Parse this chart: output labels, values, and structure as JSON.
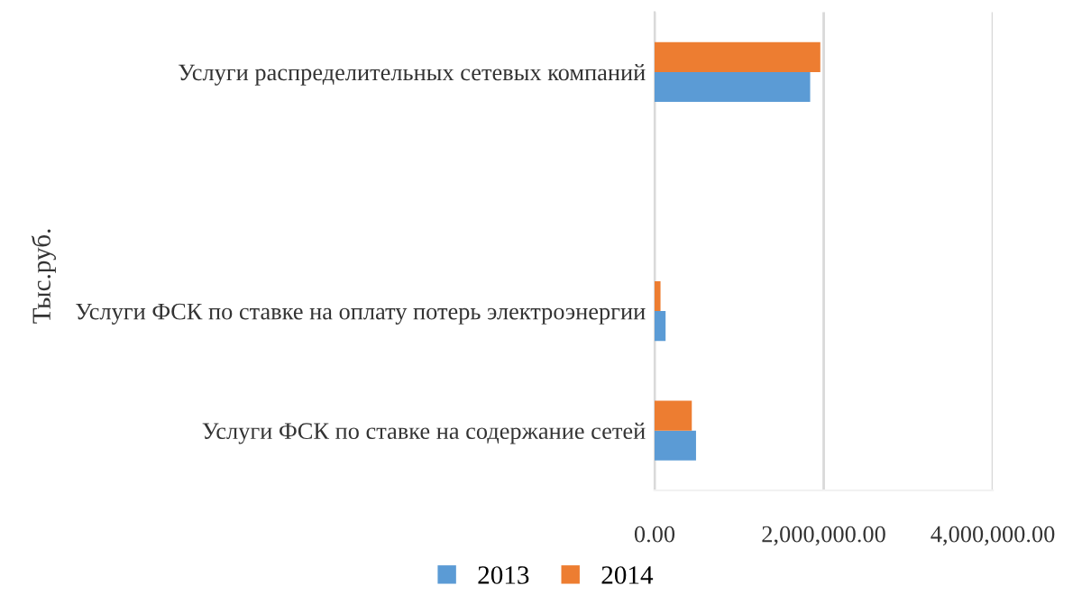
{
  "chart_data": {
    "type": "bar",
    "orientation": "horizontal",
    "ylabel": "Тыс.руб.",
    "categories": [
      "Услуги распределительных сетевых компаний",
      null,
      "Услуги ФСК по ставке на оплату потерь электроэнергии",
      "Услуги ФСК по ставке на содержание сетей"
    ],
    "series": [
      {
        "name": "2013",
        "color": "#5b9bd5",
        "values": [
          1840000,
          null,
          130000,
          490000
        ]
      },
      {
        "name": "2014",
        "color": "#ed7d31",
        "values": [
          1960000,
          null,
          70000,
          440000
        ]
      }
    ],
    "xlim": [
      0,
      4000000
    ],
    "xticks": [
      {
        "value": 0,
        "label": "0.00"
      },
      {
        "value": 2000000,
        "label": "2,000,000.00"
      },
      {
        "value": 4000000,
        "label": "4,000,000.00"
      }
    ],
    "grid": "x",
    "legend": "bottom"
  }
}
